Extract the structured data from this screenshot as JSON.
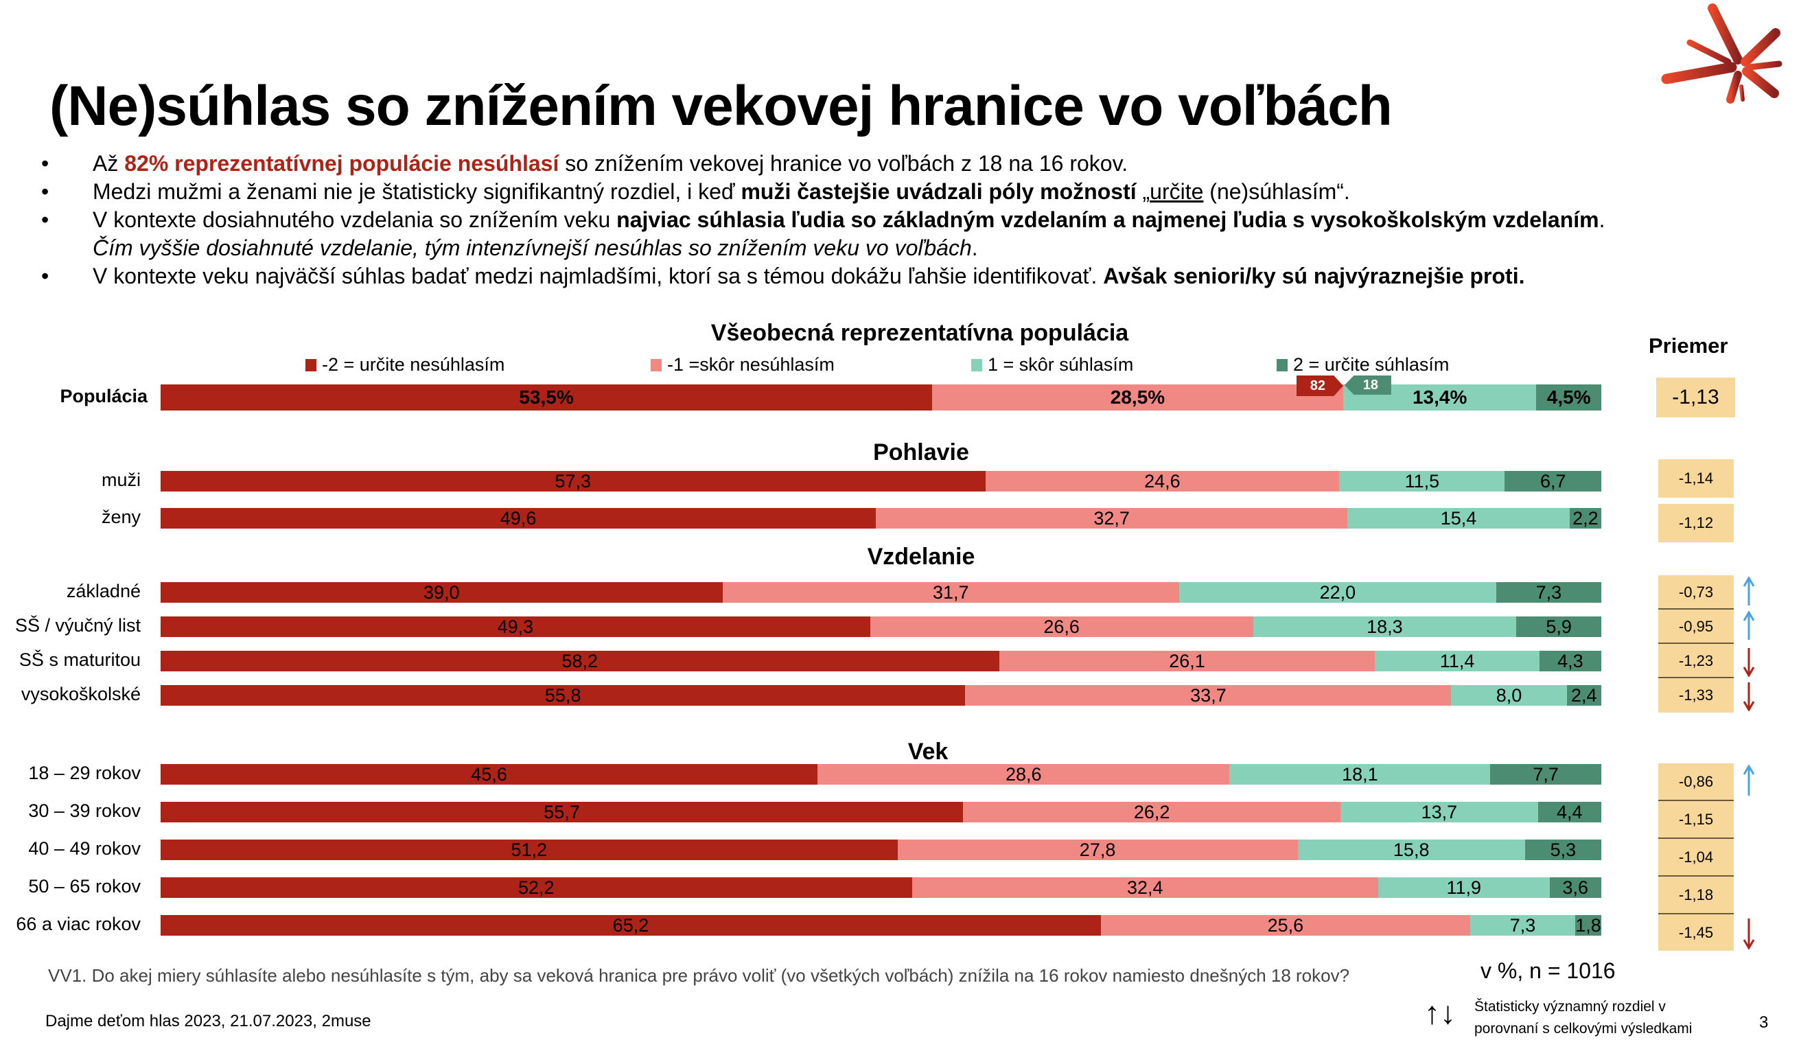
{
  "title": "(Ne)súhlas so znížením vekovej hranice vo voľbách",
  "logo_icon": "starburst-logo-icon",
  "bullets": [
    {
      "parts": [
        {
          "t": "Až ",
          "s": ""
        },
        {
          "t": "82% reprezentatívnej populácie nesúhlasí",
          "s": "red-bold"
        },
        {
          "t": " so znížením vekovej hranice vo voľbách z 18 na 16 rokov.",
          "s": ""
        }
      ]
    },
    {
      "parts": [
        {
          "t": "Medzi mužmi a ženami nie je štatisticky signifikantný rozdiel, i keď ",
          "s": ""
        },
        {
          "t": "muži častejšie uvádzali póly možností",
          "s": "b"
        },
        {
          "t": " „",
          "s": ""
        },
        {
          "t": "určite",
          "s": "u"
        },
        {
          "t": " (ne)súhlasím“.",
          "s": ""
        }
      ]
    },
    {
      "parts": [
        {
          "t": "V kontexte dosiahnutého vzdelania so znížením veku ",
          "s": ""
        },
        {
          "t": "najviac súhlasia ľudia so základným vzdelaním a najmenej ľudia s vysokoškolským vzdelaním",
          "s": "b"
        },
        {
          "t": ".",
          "s": ""
        }
      ]
    },
    {
      "parts": [
        {
          "t": "Čím vyššie dosiahnuté vzdelanie, tým intenzívnejší nesúhlas so znížením veku vo voľbách",
          "s": "i"
        },
        {
          "t": ".",
          "s": ""
        }
      ],
      "continuation": true
    },
    {
      "parts": [
        {
          "t": "V kontexte veku najväčší súhlas badať medzi najmladšími, ktorí sa s témou dokážu ľahšie identifikovať. ",
          "s": ""
        },
        {
          "t": "Avšak seniori/ky sú najvýraznejšie proti.",
          "s": "b"
        }
      ]
    }
  ],
  "bullet_char": "•",
  "colors": {
    "strongly_disagree": "#AE2318",
    "disagree": "#F08884",
    "agree": "#86D1B7",
    "strongly_agree": "#4C8C72",
    "mean_box": "#F8D79A",
    "up_arrow": "#4BA3E0",
    "down_arrow": "#AE2318"
  },
  "chart_data": {
    "type": "bar",
    "orientation": "horizontal-stacked-100",
    "title": "Všeobecná reprezentatívna populácia",
    "unit_note": "v %, n = 1016",
    "legend": [
      {
        "key": "strongly_disagree",
        "label": "-2 = určite nesúhlasím"
      },
      {
        "key": "disagree",
        "label": "-1 =skôr nesúhlasím"
      },
      {
        "key": "agree",
        "label": "1 = skôr súhlasím"
      },
      {
        "key": "strongly_agree",
        "label": "2 = určite súhlasím"
      }
    ],
    "mean_header": "Priemer",
    "population": {
      "label": "Populácia",
      "values": [
        53.5,
        28.5,
        13.4,
        4.5
      ],
      "value_labels": [
        "53,5%",
        "28,5%",
        "13,4%",
        "4,5%"
      ],
      "mean": "-1,13",
      "disagree_total": "82",
      "agree_total": "18"
    },
    "groups": [
      {
        "title": "Pohlavie",
        "rows": [
          {
            "label": "muži",
            "values": [
              57.3,
              24.6,
              11.5,
              6.7
            ],
            "value_labels": [
              "57,3",
              "24,6",
              "11,5",
              "6,7"
            ],
            "mean": "-1,14",
            "sig": ""
          },
          {
            "label": "ženy",
            "values": [
              49.6,
              32.7,
              15.4,
              2.2
            ],
            "value_labels": [
              "49,6",
              "32,7",
              "15,4",
              "2,2"
            ],
            "mean": "-1,12",
            "sig": ""
          }
        ]
      },
      {
        "title": "Vzdelanie",
        "rows": [
          {
            "label": "základné",
            "values": [
              39.0,
              31.7,
              22.0,
              7.3
            ],
            "value_labels": [
              "39,0",
              "31,7",
              "22,0",
              "7,3"
            ],
            "mean": "-0,73",
            "sig": "up"
          },
          {
            "label": "SŠ / výučný list",
            "values": [
              49.3,
              26.6,
              18.3,
              5.9
            ],
            "value_labels": [
              "49,3",
              "26,6",
              "18,3",
              "5,9"
            ],
            "mean": "-0,95",
            "sig": "up"
          },
          {
            "label": "SŠ s maturitou",
            "values": [
              58.2,
              26.1,
              11.4,
              4.3
            ],
            "value_labels": [
              "58,2",
              "26,1",
              "11,4",
              "4,3"
            ],
            "mean": "-1,23",
            "sig": "down"
          },
          {
            "label": "vysokoškolské",
            "values": [
              55.8,
              33.7,
              8.0,
              2.4
            ],
            "value_labels": [
              "55,8",
              "33,7",
              "8,0",
              "2,4"
            ],
            "mean": "-1,33",
            "sig": "down"
          }
        ]
      },
      {
        "title": "Vek",
        "rows": [
          {
            "label": "18 – 29 rokov",
            "values": [
              45.6,
              28.6,
              18.1,
              7.7
            ],
            "value_labels": [
              "45,6",
              "28,6",
              "18,1",
              "7,7"
            ],
            "mean": "-0,86",
            "sig": "up"
          },
          {
            "label": "30 – 39 rokov",
            "values": [
              55.7,
              26.2,
              13.7,
              4.4
            ],
            "value_labels": [
              "55,7",
              "26,2",
              "13,7",
              "4,4"
            ],
            "mean": "-1,15",
            "sig": ""
          },
          {
            "label": "40 – 49 rokov",
            "values": [
              51.2,
              27.8,
              15.8,
              5.3
            ],
            "value_labels": [
              "51,2",
              "27,8",
              "15,8",
              "5,3"
            ],
            "mean": "-1,04",
            "sig": ""
          },
          {
            "label": "50 – 65 rokov",
            "values": [
              52.2,
              32.4,
              11.9,
              3.6
            ],
            "value_labels": [
              "52,2",
              "32,4",
              "11,9",
              "3,6"
            ],
            "mean": "-1,18",
            "sig": ""
          },
          {
            "label": "66 a viac rokov",
            "values": [
              65.2,
              25.6,
              7.3,
              1.8
            ],
            "value_labels": [
              "65,2",
              "25,6",
              "7,3",
              "1,8"
            ],
            "mean": "-1,45",
            "sig": "down"
          }
        ]
      }
    ],
    "xlim": [
      0,
      100
    ]
  },
  "footer": {
    "question": "VV1. Do akej miery súhlasíte alebo nesúhlasíte s tým, aby sa veková hranica pre právo voliť (vo všetkých voľbách) znížila na 16 rokov namiesto dnešných 18 rokov?",
    "sample": "v %, n = 1016",
    "source": "Dajme deťom hlas 2023, 21.07.2023, 2muse",
    "sig_legend_line1": "Štatisticky významný rozdiel v",
    "sig_legend_line2": "porovnaní s celkovými výsledkami",
    "sig_legend_arrows": "↑↓",
    "page_number": "3"
  }
}
